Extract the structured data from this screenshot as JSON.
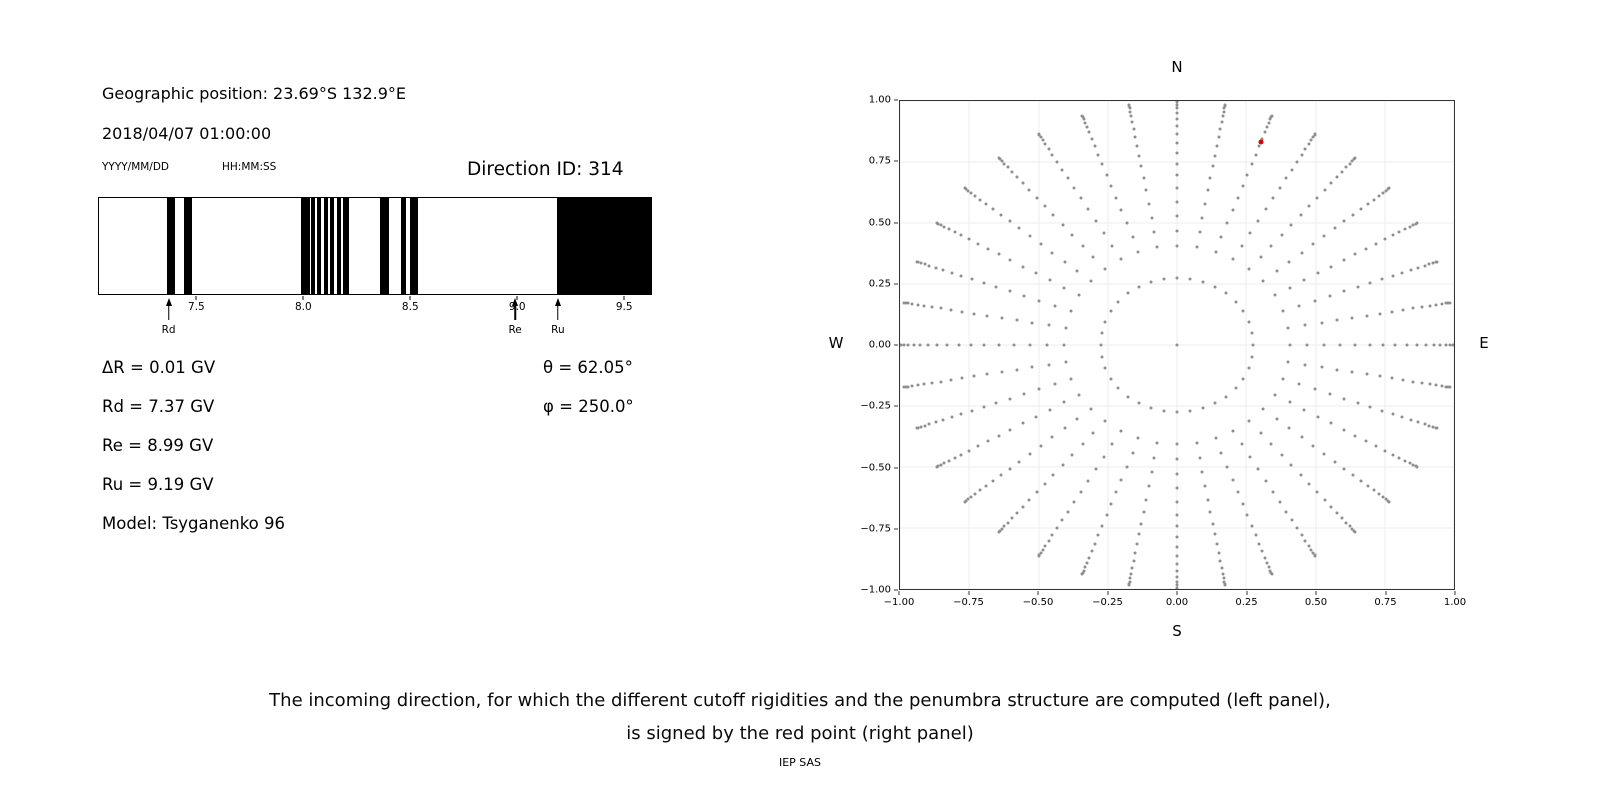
{
  "header": {
    "geo_position": "Geographic position: 23.69°S 132.9°E",
    "datetime": "2018/04/07 01:00:00",
    "date_format": "YYYY/MM/DD",
    "time_format": "HH:MM:SS",
    "direction_id": "Direction ID: 314"
  },
  "left_panel": {
    "params": [
      "ΔR = 0.01 GV",
      "Rd = 7.37 GV",
      "Re = 8.99 GV",
      "Ru = 9.19 GV",
      "Model: Tsyganenko 96"
    ],
    "angles": [
      "θ = 62.05°",
      "φ = 250.0°"
    ]
  },
  "chart_data": [
    {
      "type": "bar",
      "description": "Penumbra structure: black bands mark forbidden rigidity intervals (GV)",
      "xlim": [
        7.04,
        9.63
      ],
      "xticks": [
        {
          "v": 7.5,
          "label": "7.5"
        },
        {
          "v": 8.0,
          "label": "8.0"
        },
        {
          "v": 8.5,
          "label": "8.5"
        },
        {
          "v": 9.0,
          "label": "9.0"
        },
        {
          "v": 9.5,
          "label": "9.5"
        }
      ],
      "forbidden_bands": [
        [
          7.36,
          7.395
        ],
        [
          7.44,
          7.475
        ],
        [
          7.99,
          8.03
        ],
        [
          8.035,
          8.055
        ],
        [
          8.065,
          8.08
        ],
        [
          8.095,
          8.115
        ],
        [
          8.125,
          8.145
        ],
        [
          8.155,
          8.175
        ],
        [
          8.185,
          8.215
        ],
        [
          8.36,
          8.4
        ],
        [
          8.455,
          8.48
        ],
        [
          8.5,
          8.535
        ],
        [
          9.19,
          9.63
        ]
      ],
      "markers": [
        {
          "label": "Rd",
          "x": 7.37
        },
        {
          "label": "Re",
          "x": 8.99
        },
        {
          "label": "Ru",
          "x": 9.19
        }
      ]
    },
    {
      "type": "scatter",
      "description": "Grid of incoming directions projected on unit circle; selected direction shown in red",
      "xlim": [
        -1,
        1
      ],
      "ylim": [
        -1,
        1
      ],
      "xticks": [
        {
          "v": -1.0,
          "label": "−1.00"
        },
        {
          "v": -0.75,
          "label": "−0.75"
        },
        {
          "v": -0.5,
          "label": "−0.50"
        },
        {
          "v": -0.25,
          "label": "−0.25"
        },
        {
          "v": 0.0,
          "label": "0.00"
        },
        {
          "v": 0.25,
          "label": "0.25"
        },
        {
          "v": 0.5,
          "label": "0.50"
        },
        {
          "v": 0.75,
          "label": "0.75"
        },
        {
          "v": 1.0,
          "label": "1.00"
        }
      ],
      "yticks": [
        {
          "v": -1.0,
          "label": "−1.00"
        },
        {
          "v": -0.75,
          "label": "−0.75"
        },
        {
          "v": -0.5,
          "label": "−0.50"
        },
        {
          "v": -0.25,
          "label": "−0.25"
        },
        {
          "v": 0.0,
          "label": "0.00"
        },
        {
          "v": 0.25,
          "label": "0.25"
        },
        {
          "v": 0.5,
          "label": "0.50"
        },
        {
          "v": 0.75,
          "label": "0.75"
        },
        {
          "v": 1.0,
          "label": "1.00"
        }
      ],
      "compass": {
        "top": "N",
        "bottom": "S",
        "left": "W",
        "right": "E"
      },
      "grid_dots": {
        "azimuth_count": 36,
        "center_dot": true,
        "color": "#8f8f8f",
        "ring_radii": [
          0.276,
          0.407,
          0.469,
          0.53,
          0.588,
          0.643,
          0.695,
          0.743,
          0.788,
          0.829,
          0.866,
          0.899,
          0.927,
          0.951,
          0.97,
          0.985,
          0.995,
          0.999
        ]
      },
      "red_point": {
        "x": 0.302,
        "y": 0.83,
        "color": "#e10000"
      }
    }
  ],
  "caption": {
    "line1": "The incoming direction, for which the different cutoff rigidities and the penumbra structure are computed (left panel),",
    "line2": "is signed by the red point (right panel)"
  },
  "footer": {
    "text": "IEP SAS"
  }
}
